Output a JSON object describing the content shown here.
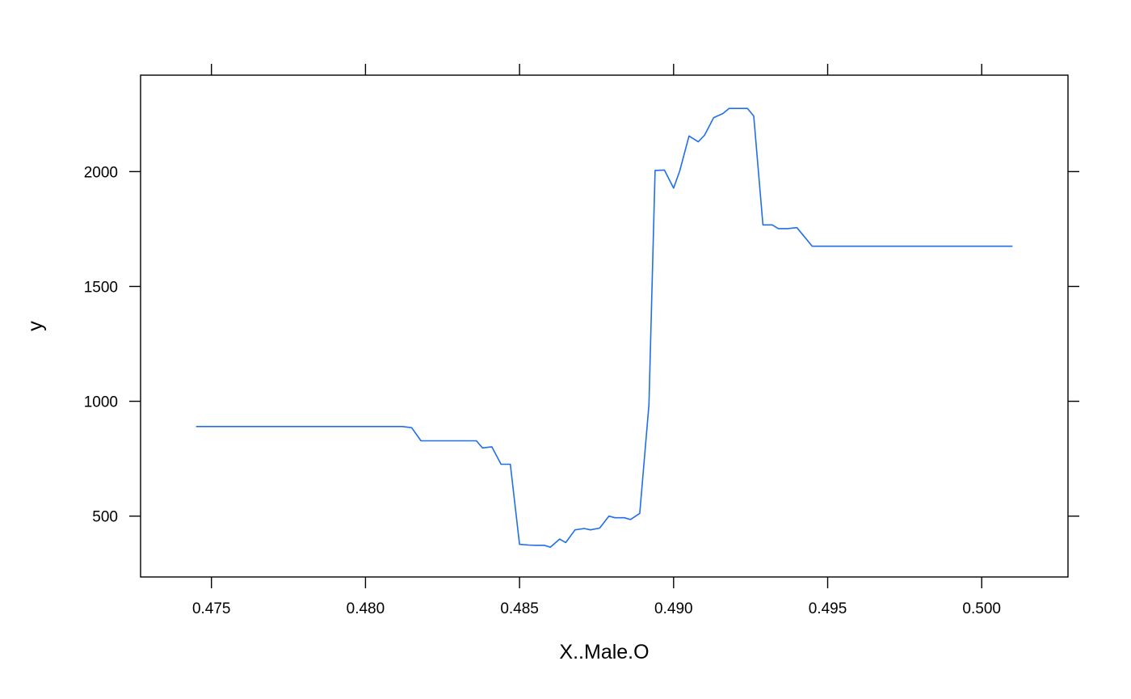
{
  "chart_data": {
    "type": "line",
    "title": "",
    "xlabel": "X..Male.O",
    "ylabel": "y",
    "xlim": [
      0.4727,
      0.5028
    ],
    "ylim": [
      235,
      2420
    ],
    "x_ticks": [
      0.475,
      0.48,
      0.485,
      0.49,
      0.495,
      0.5
    ],
    "x_tick_labels": [
      "0.475",
      "0.480",
      "0.485",
      "0.490",
      "0.495",
      "0.500"
    ],
    "y_ticks": [
      500,
      1000,
      1500,
      2000
    ],
    "y_tick_labels": [
      "500",
      "1000",
      "1500",
      "2000"
    ],
    "grid": false,
    "line_color": "#1F6FEB",
    "series": [
      {
        "x": [
          0.4745,
          0.4812,
          0.4815,
          0.4818,
          0.4836,
          0.4838,
          0.4841,
          0.4844,
          0.4847,
          0.485,
          0.4853,
          0.4855,
          0.4858,
          0.486,
          0.4863,
          0.4865,
          0.4868,
          0.4871,
          0.4873,
          0.4876,
          0.4879,
          0.4881,
          0.4884,
          0.4886,
          0.4889,
          0.4892,
          0.4894,
          0.4897,
          0.49,
          0.4902,
          0.4905,
          0.4908,
          0.491,
          0.4913,
          0.4916,
          0.4918,
          0.4921,
          0.4924,
          0.4926,
          0.4929,
          0.4932,
          0.4934,
          0.4937,
          0.494,
          0.4942,
          0.4945,
          0.501
        ],
        "y": [
          890,
          890,
          885,
          828,
          828,
          797,
          802,
          726,
          726,
          377,
          374,
          373,
          373,
          365,
          400,
          385,
          440,
          446,
          440,
          448,
          500,
          493,
          493,
          485,
          512,
          985,
          2005,
          2007,
          1928,
          2003,
          2155,
          2130,
          2158,
          2235,
          2253,
          2275,
          2275,
          2275,
          2242,
          1768,
          1768,
          1752,
          1752,
          1756,
          1724,
          1675,
          1675
        ]
      }
    ]
  }
}
